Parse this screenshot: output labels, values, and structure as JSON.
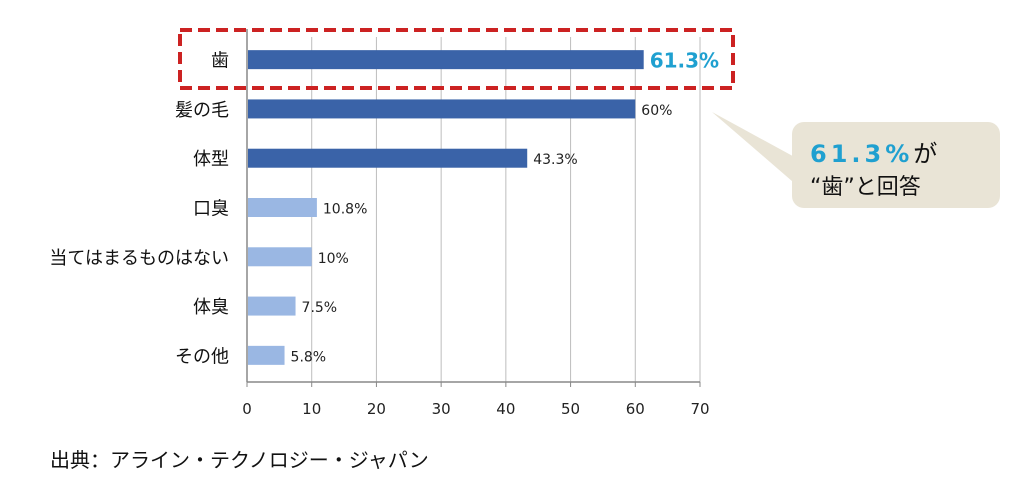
{
  "chart_data": {
    "type": "bar",
    "orientation": "horizontal",
    "categories": [
      "歯",
      "髪の毛",
      "体型",
      "口臭",
      "当てはまるものはない",
      "体臭",
      "その他"
    ],
    "values": [
      61.3,
      60,
      43.3,
      10.8,
      10,
      7.5,
      5.8
    ],
    "value_labels": [
      "61.3%",
      "60%",
      "43.3%",
      "10.8%",
      "10%",
      "7.5%",
      "5.8%"
    ],
    "xlim": [
      0,
      70
    ],
    "xticks": [
      0,
      10,
      20,
      30,
      40,
      50,
      60,
      70
    ],
    "grid": true,
    "colors": {
      "dark_bar": "#3a63a8",
      "light_bar": "#9ab7e3",
      "highlight_box": "#cc2222",
      "highlight_label": "#1fa0d0"
    },
    "highlight_category": "歯",
    "callout": {
      "line1_number": "61.3%",
      "line1_suffix": "が",
      "line2": "“歯”と回答"
    }
  },
  "source_note": "出典：アライン・テクノロジー・ジャパン"
}
